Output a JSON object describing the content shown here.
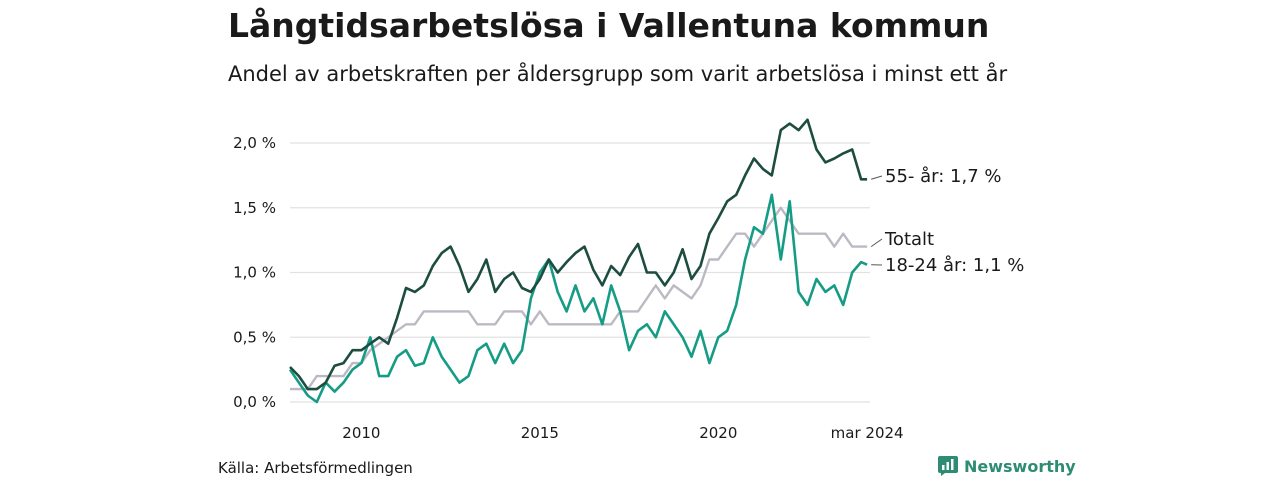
{
  "title": "Långtidsarbetslösa i Vallentuna kommun",
  "subtitle": "Andel av arbetskraften per åldersgrupp som varit arbetslösa i minst ett år",
  "source": "Källa: Arbetsförmedlingen",
  "brand": "Newsworthy",
  "colors": {
    "senior": "#1d4d40",
    "total": "#bdb9c4",
    "youth": "#169c85",
    "grid": "#e2e2e2",
    "brand": "#2e8b74"
  },
  "chart_data": {
    "type": "line",
    "title": "Långtidsarbetslösa i Vallentuna kommun",
    "subtitle": "Andel av arbetskraften per åldersgrupp som varit arbetslösa i minst ett år",
    "xlabel": "",
    "ylabel": "",
    "xlim": [
      2008.0,
      2024.25
    ],
    "ylim": [
      0,
      2.2
    ],
    "yticks": [
      0,
      0.5,
      1,
      1.5,
      2
    ],
    "ytick_labels": [
      "0,0 %",
      "0,5 %",
      "1,0 %",
      "1,5 %",
      "2,0 %"
    ],
    "xticks": [
      2010,
      2015,
      2020,
      2024.17
    ],
    "xtick_labels": [
      "2010",
      "2015",
      "2020",
      "mar 2024"
    ],
    "grid": true,
    "series": [
      {
        "name": "55- år",
        "label": "55- år: 1,7 %",
        "color_key": "senior",
        "points": [
          [
            2008.0,
            0.27
          ],
          [
            2008.25,
            0.2
          ],
          [
            2008.5,
            0.1
          ],
          [
            2008.75,
            0.1
          ],
          [
            2009.0,
            0.15
          ],
          [
            2009.25,
            0.28
          ],
          [
            2009.5,
            0.3
          ],
          [
            2009.75,
            0.4
          ],
          [
            2010.0,
            0.4
          ],
          [
            2010.25,
            0.45
          ],
          [
            2010.5,
            0.5
          ],
          [
            2010.75,
            0.45
          ],
          [
            2011.0,
            0.65
          ],
          [
            2011.25,
            0.88
          ],
          [
            2011.5,
            0.85
          ],
          [
            2011.75,
            0.9
          ],
          [
            2012.0,
            1.05
          ],
          [
            2012.25,
            1.15
          ],
          [
            2012.5,
            1.2
          ],
          [
            2012.75,
            1.05
          ],
          [
            2013.0,
            0.85
          ],
          [
            2013.25,
            0.95
          ],
          [
            2013.5,
            1.1
          ],
          [
            2013.75,
            0.85
          ],
          [
            2014.0,
            0.95
          ],
          [
            2014.25,
            1.0
          ],
          [
            2014.5,
            0.88
          ],
          [
            2014.75,
            0.85
          ],
          [
            2015.0,
            0.95
          ],
          [
            2015.25,
            1.1
          ],
          [
            2015.5,
            1.0
          ],
          [
            2015.75,
            1.08
          ],
          [
            2016.0,
            1.15
          ],
          [
            2016.25,
            1.2
          ],
          [
            2016.5,
            1.02
          ],
          [
            2016.75,
            0.9
          ],
          [
            2017.0,
            1.05
          ],
          [
            2017.25,
            0.98
          ],
          [
            2017.5,
            1.12
          ],
          [
            2017.75,
            1.22
          ],
          [
            2018.0,
            1.0
          ],
          [
            2018.25,
            1.0
          ],
          [
            2018.5,
            0.9
          ],
          [
            2018.75,
            1.0
          ],
          [
            2019.0,
            1.18
          ],
          [
            2019.25,
            0.95
          ],
          [
            2019.5,
            1.05
          ],
          [
            2019.75,
            1.3
          ],
          [
            2020.0,
            1.42
          ],
          [
            2020.25,
            1.55
          ],
          [
            2020.5,
            1.6
          ],
          [
            2020.75,
            1.75
          ],
          [
            2021.0,
            1.88
          ],
          [
            2021.25,
            1.8
          ],
          [
            2021.5,
            1.75
          ],
          [
            2021.75,
            2.1
          ],
          [
            2022.0,
            2.15
          ],
          [
            2022.25,
            2.1
          ],
          [
            2022.5,
            2.18
          ],
          [
            2022.75,
            1.95
          ],
          [
            2023.0,
            1.85
          ],
          [
            2023.25,
            1.88
          ],
          [
            2023.5,
            1.92
          ],
          [
            2023.75,
            1.95
          ],
          [
            2024.0,
            1.72
          ],
          [
            2024.17,
            1.72
          ]
        ]
      },
      {
        "name": "Totalt",
        "label": "Totalt",
        "color_key": "total",
        "points": [
          [
            2008.0,
            0.1
          ],
          [
            2008.5,
            0.1
          ],
          [
            2008.75,
            0.2
          ],
          [
            2009.5,
            0.2
          ],
          [
            2009.75,
            0.3
          ],
          [
            2010.0,
            0.3
          ],
          [
            2010.25,
            0.4
          ],
          [
            2010.75,
            0.5
          ],
          [
            2011.25,
            0.6
          ],
          [
            2011.5,
            0.6
          ],
          [
            2011.75,
            0.7
          ],
          [
            2013.0,
            0.7
          ],
          [
            2013.25,
            0.6
          ],
          [
            2013.75,
            0.6
          ],
          [
            2014.0,
            0.7
          ],
          [
            2014.5,
            0.7
          ],
          [
            2014.75,
            0.6
          ],
          [
            2015.0,
            0.7
          ],
          [
            2015.25,
            0.6
          ],
          [
            2017.0,
            0.6
          ],
          [
            2017.25,
            0.7
          ],
          [
            2017.75,
            0.7
          ],
          [
            2018.0,
            0.8
          ],
          [
            2018.25,
            0.9
          ],
          [
            2018.5,
            0.8
          ],
          [
            2018.75,
            0.9
          ],
          [
            2019.25,
            0.8
          ],
          [
            2019.5,
            0.9
          ],
          [
            2019.75,
            1.1
          ],
          [
            2020.0,
            1.1
          ],
          [
            2020.25,
            1.2
          ],
          [
            2020.5,
            1.3
          ],
          [
            2020.75,
            1.3
          ],
          [
            2021.0,
            1.2
          ],
          [
            2021.25,
            1.3
          ],
          [
            2021.5,
            1.4
          ],
          [
            2021.75,
            1.5
          ],
          [
            2022.0,
            1.4
          ],
          [
            2022.25,
            1.3
          ],
          [
            2023.0,
            1.3
          ],
          [
            2023.25,
            1.2
          ],
          [
            2023.5,
            1.3
          ],
          [
            2023.75,
            1.2
          ],
          [
            2024.17,
            1.2
          ]
        ]
      },
      {
        "name": "18-24 år",
        "label": "18-24 år: 1,1 %",
        "color_key": "youth",
        "points": [
          [
            2008.0,
            0.25
          ],
          [
            2008.25,
            0.15
          ],
          [
            2008.5,
            0.05
          ],
          [
            2008.75,
            0.0
          ],
          [
            2009.0,
            0.15
          ],
          [
            2009.25,
            0.08
          ],
          [
            2009.5,
            0.15
          ],
          [
            2009.75,
            0.25
          ],
          [
            2010.0,
            0.3
          ],
          [
            2010.25,
            0.5
          ],
          [
            2010.5,
            0.2
          ],
          [
            2010.75,
            0.2
          ],
          [
            2011.0,
            0.35
          ],
          [
            2011.25,
            0.4
          ],
          [
            2011.5,
            0.28
          ],
          [
            2011.75,
            0.3
          ],
          [
            2012.0,
            0.5
          ],
          [
            2012.25,
            0.35
          ],
          [
            2012.5,
            0.25
          ],
          [
            2012.75,
            0.15
          ],
          [
            2013.0,
            0.2
          ],
          [
            2013.25,
            0.4
          ],
          [
            2013.5,
            0.45
          ],
          [
            2013.75,
            0.3
          ],
          [
            2014.0,
            0.45
          ],
          [
            2014.25,
            0.3
          ],
          [
            2014.5,
            0.4
          ],
          [
            2014.75,
            0.8
          ],
          [
            2015.0,
            1.0
          ],
          [
            2015.25,
            1.1
          ],
          [
            2015.5,
            0.85
          ],
          [
            2015.75,
            0.7
          ],
          [
            2016.0,
            0.9
          ],
          [
            2016.25,
            0.7
          ],
          [
            2016.5,
            0.8
          ],
          [
            2016.75,
            0.6
          ],
          [
            2017.0,
            0.9
          ],
          [
            2017.25,
            0.7
          ],
          [
            2017.5,
            0.4
          ],
          [
            2017.75,
            0.55
          ],
          [
            2018.0,
            0.6
          ],
          [
            2018.25,
            0.5
          ],
          [
            2018.5,
            0.7
          ],
          [
            2018.75,
            0.6
          ],
          [
            2019.0,
            0.5
          ],
          [
            2019.25,
            0.35
          ],
          [
            2019.5,
            0.55
          ],
          [
            2019.75,
            0.3
          ],
          [
            2020.0,
            0.5
          ],
          [
            2020.25,
            0.55
          ],
          [
            2020.5,
            0.75
          ],
          [
            2020.75,
            1.1
          ],
          [
            2021.0,
            1.35
          ],
          [
            2021.25,
            1.3
          ],
          [
            2021.5,
            1.6
          ],
          [
            2021.75,
            1.1
          ],
          [
            2022.0,
            1.55
          ],
          [
            2022.25,
            0.85
          ],
          [
            2022.5,
            0.75
          ],
          [
            2022.75,
            0.95
          ],
          [
            2023.0,
            0.85
          ],
          [
            2023.25,
            0.9
          ],
          [
            2023.5,
            0.75
          ],
          [
            2023.75,
            1.0
          ],
          [
            2024.0,
            1.08
          ],
          [
            2024.17,
            1.06
          ]
        ]
      }
    ]
  }
}
